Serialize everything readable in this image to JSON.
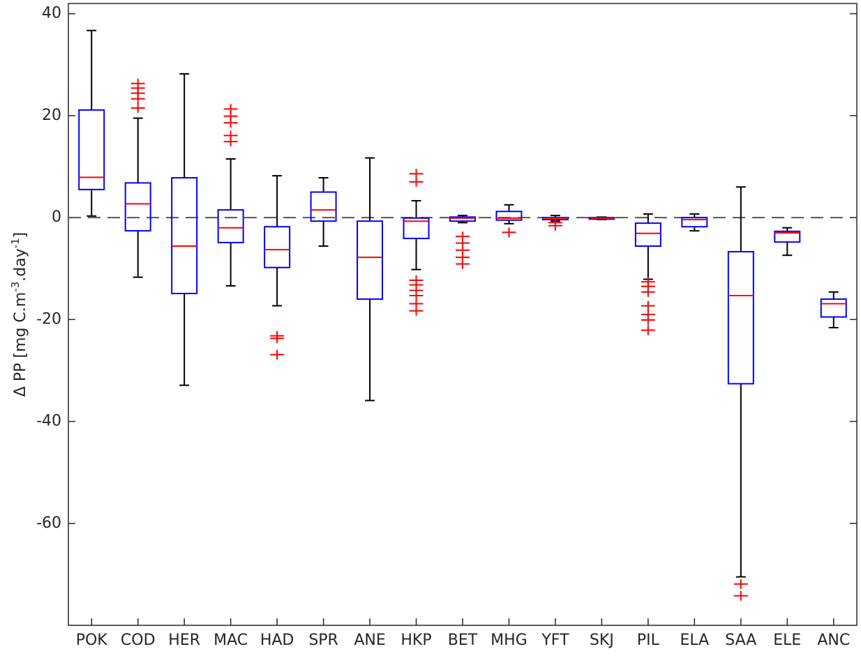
{
  "chart_data": {
    "type": "box",
    "ylabel": {
      "text": "Δ PP [mg C.m",
      "sup1": "-3",
      "mid": ".day",
      "sup2": "-1",
      "end": "]"
    },
    "categories": [
      "POK",
      "COD",
      "HER",
      "MAC",
      "HAD",
      "SPR",
      "ANE",
      "HKP",
      "BET",
      "MHG",
      "YFT",
      "SKJ",
      "PIL",
      "ELA",
      "SAA",
      "ELE",
      "ANC"
    ],
    "boxes": [
      {
        "whisker_low": 0.3,
        "q1": 5.5,
        "median": 7.9,
        "q3": 21.1,
        "whisker_high": 36.7,
        "outliers": []
      },
      {
        "whisker_low": -11.7,
        "q1": -2.6,
        "median": 2.7,
        "q3": 6.8,
        "whisker_high": 19.5,
        "outliers": [
          26.3,
          25.4,
          24.4,
          23.3,
          21.5
        ]
      },
      {
        "whisker_low": -32.9,
        "q1": -14.9,
        "median": -5.6,
        "q3": 7.8,
        "whisker_high": 28.2,
        "outliers": []
      },
      {
        "whisker_low": -13.4,
        "q1": -4.9,
        "median": -2,
        "q3": 1.5,
        "whisker_high": 11.5,
        "outliers": [
          21.3,
          19.9,
          18.6,
          16.1,
          14.9
        ]
      },
      {
        "whisker_low": -17.3,
        "q1": -9.8,
        "median": -6.3,
        "q3": -1.8,
        "whisker_high": 8.2,
        "outliers": [
          -23.2,
          -23.7,
          -26.9
        ]
      },
      {
        "whisker_low": -5.6,
        "q1": -0.7,
        "median": 1.5,
        "q3": 5,
        "whisker_high": 7.8,
        "outliers": []
      },
      {
        "whisker_low": -35.9,
        "q1": -16,
        "median": -7.8,
        "q3": -0.7,
        "whisker_high": 11.7,
        "outliers": []
      },
      {
        "whisker_low": -10.2,
        "q1": -4.1,
        "median": -0.7,
        "q3": -0.1,
        "whisker_high": 3.3,
        "outliers": [
          8.6,
          7,
          -12.3,
          -13.2,
          -14.3,
          -15.3,
          -16.9,
          -18.3
        ]
      },
      {
        "whisker_low": -1,
        "q1": -0.7,
        "median": -0.1,
        "q3": 0.1,
        "whisker_high": 0.4,
        "outliers": [
          -3.7,
          -5,
          -6.4,
          -7.8,
          -9.1
        ]
      },
      {
        "whisker_low": -1.2,
        "q1": -0.5,
        "median": -0.1,
        "q3": 1.2,
        "whisker_high": 2.5,
        "outliers": [
          -2.9
        ]
      },
      {
        "whisker_low": -0.7,
        "q1": -0.4,
        "median": -0.1,
        "q3": 0,
        "whisker_high": 0.4,
        "outliers": [
          -1,
          -1.6
        ]
      },
      {
        "whisker_low": -0.4,
        "q1": -0.3,
        "median": -0.1,
        "q3": 0,
        "whisker_high": 0.1,
        "outliers": []
      },
      {
        "whisker_low": -12.1,
        "q1": -5.6,
        "median": -3.1,
        "q3": -1.1,
        "whisker_high": 0.7,
        "outliers": [
          -12.6,
          -13.5,
          -14.6,
          -17.3,
          -19,
          -20.1,
          -22.1
        ]
      },
      {
        "whisker_low": -2.6,
        "q1": -1.8,
        "median": -0.4,
        "q3": 0,
        "whisker_high": 0.7,
        "outliers": []
      },
      {
        "whisker_low": -70.5,
        "q1": -32.6,
        "median": -15.3,
        "q3": -6.7,
        "whisker_high": 6,
        "outliers": [
          -71.9,
          -74.2
        ]
      },
      {
        "whisker_low": -7.4,
        "q1": -4.8,
        "median": -3,
        "q3": -2.7,
        "whisker_high": -2,
        "outliers": []
      },
      {
        "whisker_low": -21.6,
        "q1": -19.5,
        "median": -16.9,
        "q3": -16,
        "whisker_high": -14.6,
        "outliers": []
      }
    ],
    "box_color": "#0000ff",
    "median_color": "#ff0000",
    "whisker_color": "#000000",
    "outlier_color": "#ff0000",
    "reference_line": 0,
    "ylim": [
      -80,
      42
    ],
    "yticks": [
      -60,
      -40,
      -20,
      0,
      20,
      40
    ]
  }
}
